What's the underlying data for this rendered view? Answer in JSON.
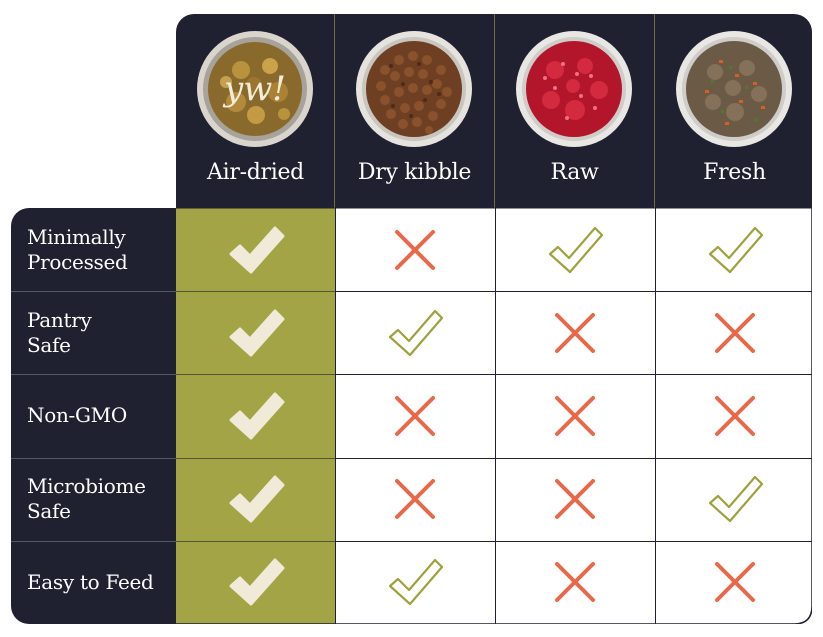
{
  "colors": {
    "dark": "#1f2030",
    "olive": "#a3a445",
    "cream_check": "#f1ead8",
    "olive_check": "#9ea23c",
    "cross": "#e8694a"
  },
  "columns": [
    {
      "label": "Air-dried",
      "image": "air-dried-food-bowl",
      "bowl_text": "yw!"
    },
    {
      "label": "Dry kibble",
      "image": "dry-kibble-bowl"
    },
    {
      "label": "Raw",
      "image": "raw-meat-bowl"
    },
    {
      "label": "Fresh",
      "image": "fresh-food-bowl"
    }
  ],
  "rows": [
    {
      "label": "Minimally\nProcessed",
      "values": [
        "yes",
        "no",
        "yes",
        "yes"
      ]
    },
    {
      "label": "Pantry\nSafe",
      "values": [
        "yes",
        "yes",
        "no",
        "no"
      ]
    },
    {
      "label": "Non-GMO",
      "values": [
        "yes",
        "no",
        "no",
        "no"
      ]
    },
    {
      "label": "Microbiome\nSafe",
      "values": [
        "yes",
        "no",
        "no",
        "yes"
      ]
    },
    {
      "label": "Easy to Feed",
      "values": [
        "yes",
        "yes",
        "no",
        "no"
      ]
    }
  ]
}
